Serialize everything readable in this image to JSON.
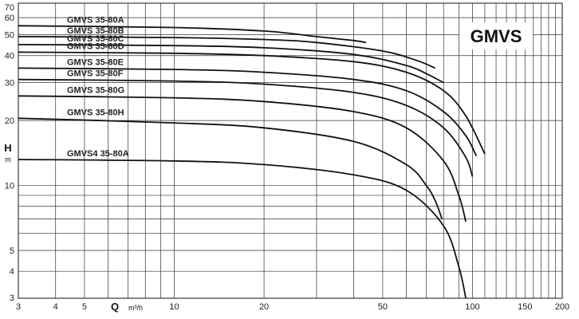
{
  "chart_data": {
    "type": "line",
    "title": "",
    "badge": "GMVS",
    "x_scale": "log",
    "y_scale": "log",
    "xlim": [
      3,
      200
    ],
    "ylim": [
      3,
      70
    ],
    "x_ticks": [
      "3",
      "4",
      "5",
      "10",
      "20",
      "50",
      "100",
      "150",
      "200"
    ],
    "y_ticks": [
      "3",
      "4",
      "5",
      "10",
      "20",
      "30",
      "40",
      "50",
      "60",
      "70"
    ],
    "xlabel": "Q",
    "xlabel_unit": "m³/h",
    "ylabel": "H",
    "ylabel_unit": "m",
    "grid": true,
    "series": [
      {
        "name": "GMVS 35-80A",
        "x": [
          3,
          10,
          20,
          30,
          40,
          44
        ],
        "y": [
          55,
          54,
          52,
          49,
          47,
          46
        ]
      },
      {
        "name": "GMVS 35-80B",
        "x": [
          3,
          10,
          20,
          30,
          50,
          65,
          75
        ],
        "y": [
          49,
          48.5,
          47.5,
          46,
          42,
          38,
          35
        ]
      },
      {
        "name": "GMVS 35-80C",
        "x": [
          3,
          10,
          20,
          40,
          60,
          70,
          80
        ],
        "y": [
          45,
          44.5,
          43.5,
          40.5,
          36,
          33,
          30
        ]
      },
      {
        "name": "GMVS 35-80D",
        "x": [
          3,
          10,
          20,
          40,
          60,
          80,
          95,
          110
        ],
        "y": [
          41.5,
          41,
          40,
          37.5,
          33.5,
          27.5,
          21,
          14
        ]
      },
      {
        "name": "GMVS 35-80E",
        "x": [
          3,
          10,
          20,
          40,
          60,
          80,
          95,
          103
        ],
        "y": [
          35,
          34.5,
          33.5,
          31,
          27.5,
          22,
          17,
          13.7
        ]
      },
      {
        "name": "GMVS 35-80F",
        "x": [
          3,
          10,
          20,
          40,
          60,
          80,
          95,
          100
        ],
        "y": [
          31,
          30.5,
          29.5,
          27,
          23.5,
          18.5,
          13.5,
          11
        ]
      },
      {
        "name": "GMVS 35-80G",
        "x": [
          3,
          10,
          20,
          40,
          60,
          80,
          90,
          95
        ],
        "y": [
          26,
          25.5,
          24.5,
          22,
          18.5,
          13,
          9,
          6.8
        ]
      },
      {
        "name": "GMVS 35-80H",
        "x": [
          3,
          10,
          20,
          40,
          60,
          70,
          75,
          79
        ],
        "y": [
          20.5,
          19.5,
          18.5,
          16,
          12.5,
          10,
          8.5,
          7
        ]
      },
      {
        "name": "GMVS4 35-80A",
        "x": [
          3,
          10,
          20,
          40,
          60,
          80,
          90,
          95
        ],
        "y": [
          13.2,
          13,
          12.5,
          11.2,
          9.5,
          6.5,
          4.2,
          3
        ]
      }
    ]
  }
}
